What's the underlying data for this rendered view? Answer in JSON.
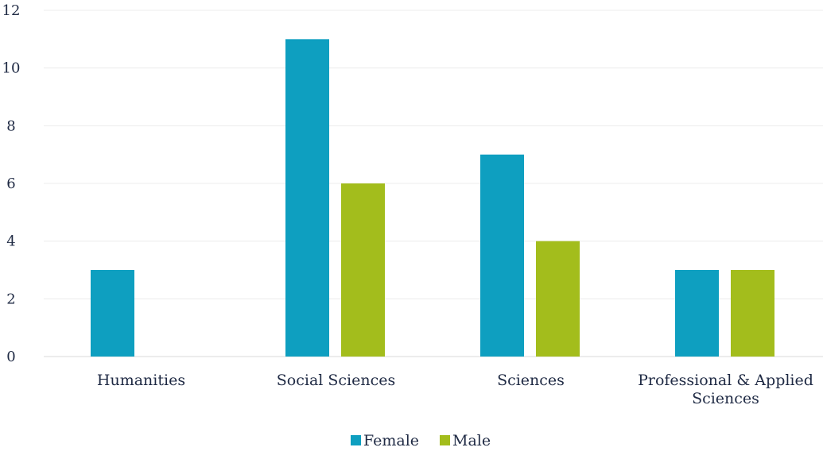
{
  "chart_data": {
    "type": "bar",
    "title": "",
    "xlabel": "",
    "ylabel": "",
    "ylim": [
      0,
      12
    ],
    "yticks": [
      0,
      2,
      4,
      6,
      8,
      10,
      12
    ],
    "grid": true,
    "legend_position": "bottom",
    "categories": [
      [
        "Humanities"
      ],
      [
        "Social Sciences"
      ],
      [
        "Sciences"
      ],
      [
        "Professional & Applied",
        "Sciences"
      ]
    ],
    "series": [
      {
        "name": "Female",
        "color": "#0e9fc0",
        "values": [
          3,
          11,
          7,
          3
        ]
      },
      {
        "name": "Male",
        "color": "#a3bd1c",
        "values": [
          0,
          6,
          4,
          3
        ]
      }
    ]
  }
}
